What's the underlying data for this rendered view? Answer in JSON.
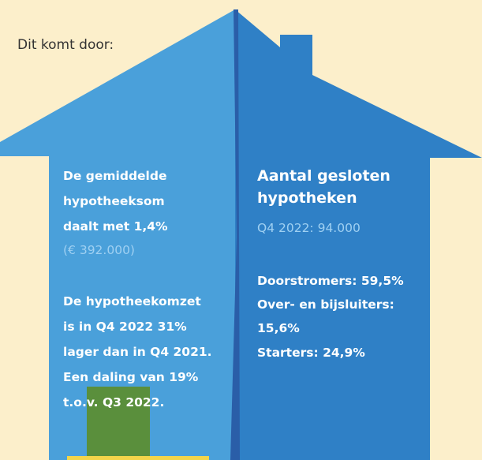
{
  "intro": "Dit komt door:",
  "left": {
    "sum": {
      "lines": [
        "De gemiddelde",
        "hypotheeksom",
        "daalt met 1,4%"
      ],
      "note": "(€ 392.000)"
    },
    "turnover": {
      "lines": [
        "De hypotheekomzet",
        "is in Q4 2022 31%",
        "lager dan in Q4 2021.",
        "Een daling van 19%",
        "t.o.v. Q3 2022."
      ]
    }
  },
  "right": {
    "title": [
      "Aantal gesloten",
      "hypotheken"
    ],
    "subtitle": "Q4 2022: 94.000",
    "breakdown": [
      "Doorstromers: 59,5%",
      "Over- en bijsluiters:",
      "15,6%",
      "Starters: 24,9%"
    ]
  }
}
